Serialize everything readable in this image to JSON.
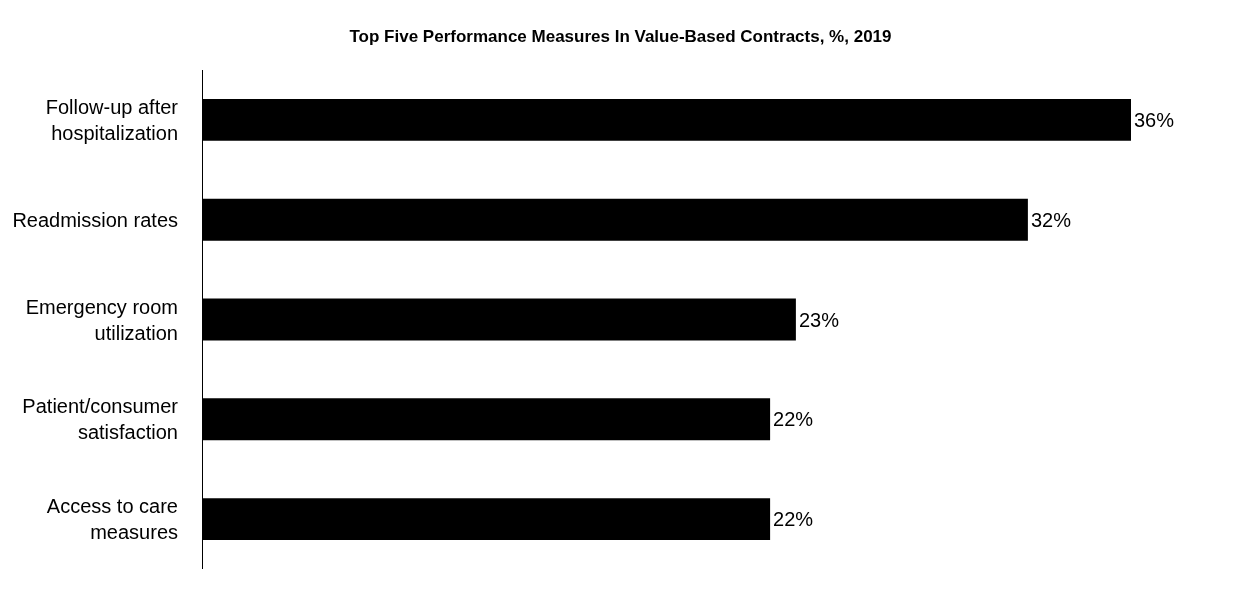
{
  "chart_data": {
    "type": "bar",
    "orientation": "horizontal",
    "title": "Top Five Performance Measures In Value-Based Contracts, %, 2019",
    "categories": [
      "Follow-up after hospitalization",
      "Readmission rates",
      "Emergency room utilization",
      "Patient/consumer satisfaction",
      "Access to care measures"
    ],
    "values": [
      36,
      32,
      23,
      22,
      22
    ],
    "value_labels": [
      "36%",
      "32%",
      "23%",
      "22%",
      "22%"
    ],
    "color": "#000000"
  }
}
